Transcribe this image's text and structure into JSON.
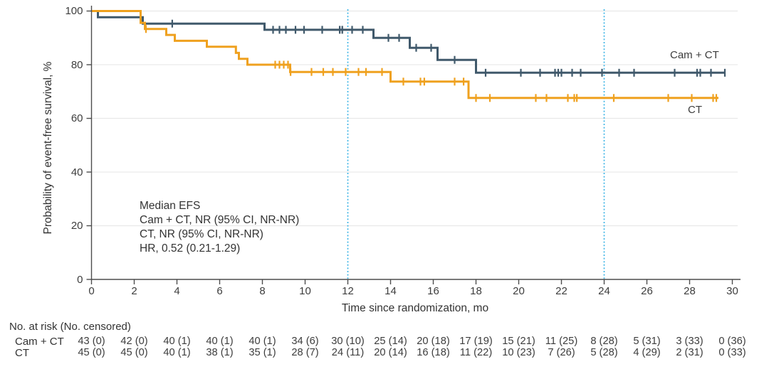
{
  "chart_data": {
    "type": "line",
    "subtype": "kaplan-meier-step-curves",
    "title": "",
    "xlabel": "Time since randomization, mo",
    "ylabel": "Probability of event-free survival, %",
    "xlim": [
      0,
      30
    ],
    "ylim": [
      0,
      100
    ],
    "x_ticks": [
      0,
      2,
      4,
      6,
      8,
      10,
      12,
      14,
      16,
      18,
      20,
      22,
      24,
      26,
      28,
      30
    ],
    "y_ticks": [
      0,
      20,
      40,
      60,
      80,
      100
    ],
    "grid": "horizontal gridlines at 20,40,60,80,100",
    "legend_position": "labels at right end of curves",
    "reference_lines_x": [
      12,
      24
    ],
    "series": [
      {
        "name": "Cam + CT",
        "color": "#40596b",
        "steps": [
          [
            0,
            100
          ],
          [
            0.3,
            97.7
          ],
          [
            2.4,
            95.3
          ],
          [
            8.1,
            93.0
          ],
          [
            13.2,
            90.0
          ],
          [
            14.9,
            86.3
          ],
          [
            16.2,
            81.8
          ],
          [
            18.0,
            77.0
          ]
        ],
        "end_x": 29.65,
        "censor_x": [
          3.78,
          8.5,
          8.8,
          9.1,
          9.55,
          9.95,
          10.8,
          11.62,
          11.74,
          12.2,
          12.7,
          13.9,
          14.4,
          15.2,
          15.9,
          17.0,
          18.45,
          20.1,
          21.0,
          21.7,
          21.85,
          22.0,
          22.5,
          22.9,
          23.9,
          24.7,
          25.4,
          27.3,
          28.35,
          28.5,
          29.0,
          29.65
        ]
      },
      {
        "name": "CT",
        "color": "#efa11f",
        "steps": [
          [
            0,
            100
          ],
          [
            2.3,
            95.6
          ],
          [
            2.5,
            93.3
          ],
          [
            3.5,
            91.1
          ],
          [
            3.9,
            88.9
          ],
          [
            5.4,
            86.7
          ],
          [
            6.76,
            84.4
          ],
          [
            6.9,
            82.2
          ],
          [
            7.3,
            80.0
          ],
          [
            9.3,
            77.3
          ],
          [
            14.0,
            73.7
          ],
          [
            17.65,
            67.6
          ]
        ],
        "end_x": 29.35,
        "censor_x": [
          2.55,
          8.6,
          8.8,
          9.0,
          9.2,
          9.32,
          10.3,
          10.85,
          11.3,
          11.9,
          12.5,
          12.85,
          13.6,
          14.6,
          15.4,
          15.58,
          17.0,
          17.42,
          18.0,
          18.65,
          20.8,
          21.3,
          22.3,
          22.6,
          22.72,
          24.45,
          27.0,
          28.1,
          29.1,
          29.25
        ]
      }
    ],
    "annotation": {
      "lines": [
        "Median EFS",
        "Cam + CT, NR (95% CI, NR-NR)",
        "CT, NR (95% CI, NR-NR)",
        "HR, 0.52 (0.21-1.29)"
      ]
    },
    "risk_table": {
      "header": "No. at risk (No. censored)",
      "times": [
        0,
        2,
        4,
        6,
        8,
        10,
        12,
        14,
        16,
        18,
        20,
        22,
        24,
        26,
        28,
        30
      ],
      "rows": [
        {
          "label": "Cam + CT",
          "values": [
            "43 (0)",
            "42 (0)",
            "40 (1)",
            "40 (1)",
            "40 (1)",
            "34 (6)",
            "30 (10)",
            "25 (14)",
            "20 (18)",
            "17 (19)",
            "15 (21)",
            "11 (25)",
            "8 (28)",
            "5 (31)",
            "3 (33)",
            "0 (36)"
          ]
        },
        {
          "label": "CT",
          "values": [
            "45 (0)",
            "45 (0)",
            "40 (1)",
            "38 (1)",
            "35 (1)",
            "28 (7)",
            "24 (11)",
            "20 (14)",
            "16 (18)",
            "11 (22)",
            "10 (23)",
            "7 (26)",
            "5 (28)",
            "4 (29)",
            "2 (31)",
            "0 (33)"
          ]
        }
      ]
    },
    "colors": {
      "cam_ct_curve": "#40596b",
      "ct_curve": "#efa11f",
      "reference_line": "#41b6e6",
      "grid": "#e9e9e9",
      "axis": "#4d4d4d",
      "text": "#353535"
    }
  }
}
